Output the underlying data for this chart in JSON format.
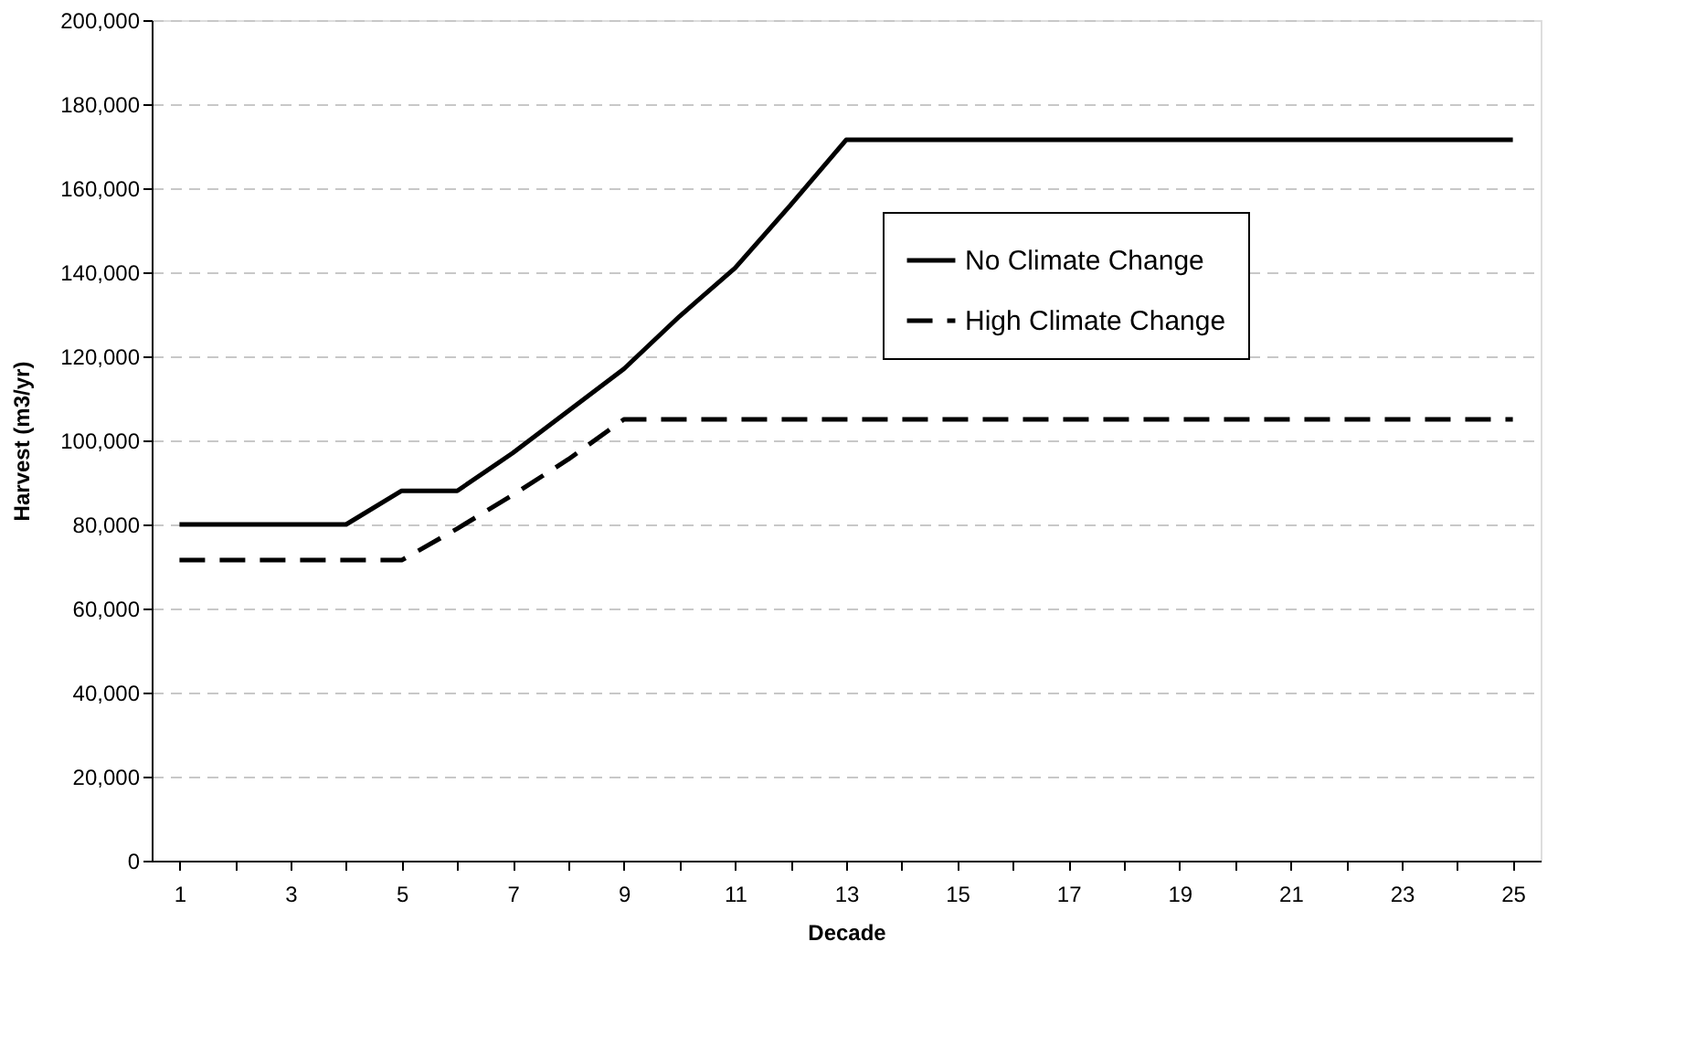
{
  "chart_data": {
    "type": "line",
    "xlabel": "Decade",
    "ylabel": "Harvest (m3/yr)",
    "x": [
      1,
      2,
      3,
      4,
      5,
      6,
      7,
      8,
      9,
      10,
      11,
      12,
      13,
      14,
      15,
      16,
      17,
      18,
      19,
      20,
      21,
      22,
      23,
      24,
      25
    ],
    "xlim": [
      0.5,
      25.5
    ],
    "xticks": [
      1,
      {
        "value": 2,
        "label": null
      },
      3,
      {
        "value": 4,
        "label": null
      },
      5,
      {
        "value": 6,
        "label": null
      },
      7,
      {
        "value": 8,
        "label": null
      },
      9,
      {
        "value": 10,
        "label": null
      },
      11,
      {
        "value": 12,
        "label": null
      },
      13,
      {
        "value": 14,
        "label": null
      },
      15,
      {
        "value": 16,
        "label": null
      },
      17,
      {
        "value": 18,
        "label": null
      },
      19,
      {
        "value": 20,
        "label": null
      },
      21,
      {
        "value": 22,
        "label": null
      },
      23,
      {
        "value": 24,
        "label": null
      },
      25
    ],
    "series": [
      {
        "name": "No Climate Change",
        "color": "#000000",
        "line_style": "solid",
        "values": [
          80000,
          80000,
          80000,
          80000,
          88000,
          88000,
          97000,
          107000,
          117000,
          129500,
          141000,
          156000,
          171500,
          171500,
          171500,
          171500,
          171500,
          171500,
          171500,
          171500,
          171500,
          171500,
          171500,
          171500,
          171500
        ]
      },
      {
        "name": "High Climate Change",
        "color": "#000000",
        "line_style": "dashed",
        "values": [
          71500,
          71500,
          71500,
          71500,
          71500,
          79000,
          87000,
          95500,
          105000,
          105000,
          105000,
          105000,
          105000,
          105000,
          105000,
          105000,
          105000,
          105000,
          105000,
          105000,
          105000,
          105000,
          105000,
          105000,
          105000
        ]
      }
    ],
    "ylim": [
      0,
      200000
    ],
    "yticks": [
      0,
      {
        "value": 20000,
        "label": "20,000"
      },
      {
        "value": 40000,
        "label": "40,000"
      },
      {
        "value": 60000,
        "label": "60,000"
      },
      {
        "value": 80000,
        "label": "80,000"
      },
      {
        "value": 100000,
        "label": "100,000"
      },
      {
        "value": 120000,
        "label": "120,000"
      },
      {
        "value": 140000,
        "label": "140,000"
      },
      {
        "value": 160000,
        "label": "160,000"
      },
      {
        "value": 180000,
        "label": "180,000"
      },
      {
        "value": 200000,
        "label": "200,000"
      }
    ],
    "grid": "y",
    "legend": "top right",
    "marker": "none"
  }
}
